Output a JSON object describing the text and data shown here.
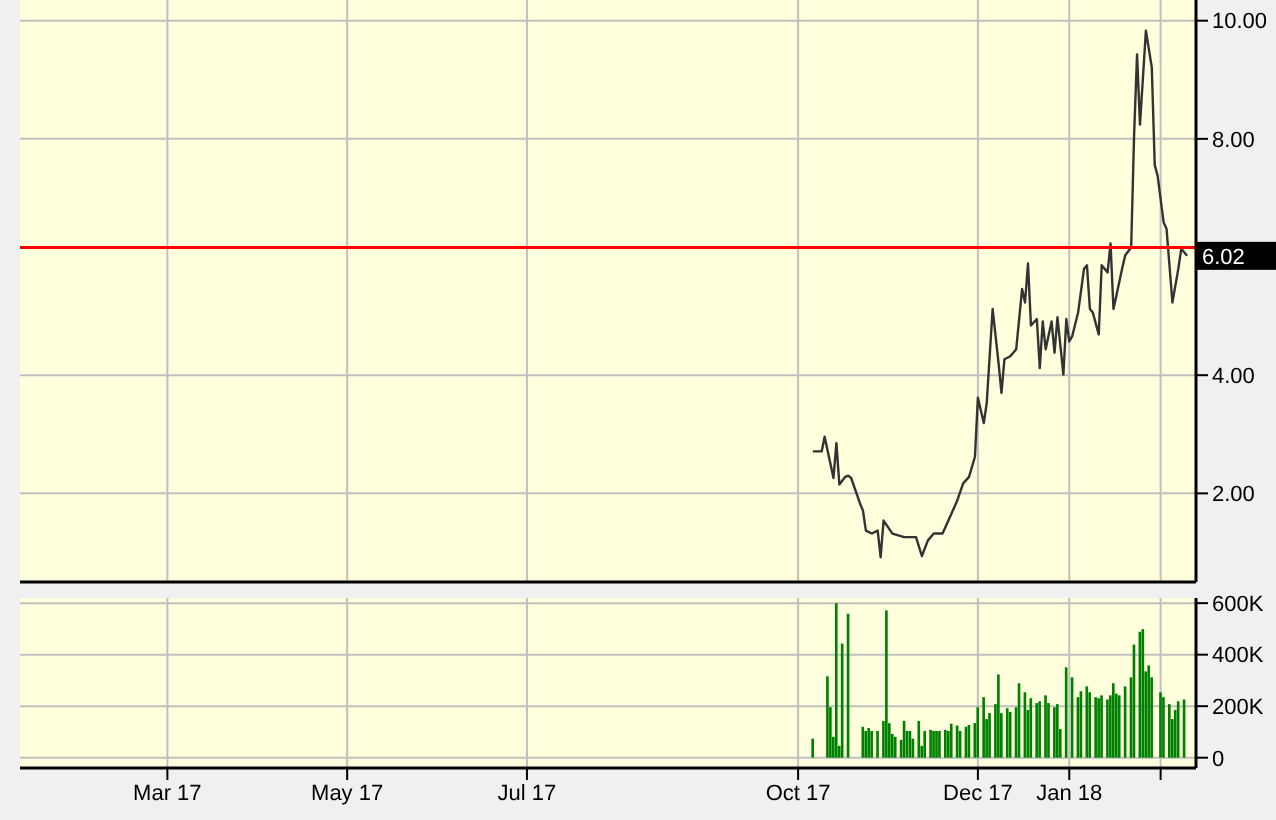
{
  "chart_data": [
    {
      "type": "line",
      "x": [
        "2017-10-06",
        "2017-10-09",
        "2017-10-10",
        "2017-10-13",
        "2017-10-14",
        "2017-10-15",
        "2017-10-17",
        "2017-10-18",
        "2017-10-19",
        "2017-10-22",
        "2017-10-23",
        "2017-10-24",
        "2017-10-26",
        "2017-10-28",
        "2017-10-29",
        "2017-10-30",
        "2017-11-02",
        "2017-11-06",
        "2017-11-10",
        "2017-11-12",
        "2017-11-14",
        "2017-11-16",
        "2017-11-19",
        "2017-11-21",
        "2017-11-24",
        "2017-11-26",
        "2017-11-28",
        "2017-11-30",
        "2017-12-01",
        "2017-12-03",
        "2017-12-04",
        "2017-12-06",
        "2017-12-08",
        "2017-12-09",
        "2017-12-10",
        "2017-12-12",
        "2017-12-14",
        "2017-12-16",
        "2017-12-17",
        "2017-12-18",
        "2017-12-19",
        "2017-12-21",
        "2017-12-22",
        "2017-12-23",
        "2017-12-24",
        "2017-12-26",
        "2017-12-27",
        "2017-12-28",
        "2017-12-30",
        "2017-12-31",
        "2018-01-01",
        "2018-01-02",
        "2018-01-04",
        "2018-01-06",
        "2018-01-07",
        "2018-01-08",
        "2018-01-09",
        "2018-01-11",
        "2018-01-12",
        "2018-01-14",
        "2018-01-15",
        "2018-01-16",
        "2018-01-17",
        "2018-01-19",
        "2018-01-20",
        "2018-01-22",
        "2018-01-23",
        "2018-01-24",
        "2018-01-25",
        "2018-01-27",
        "2018-01-29",
        "2018-01-30",
        "2018-01-31",
        "2018-02-02",
        "2018-02-03",
        "2018-02-05",
        "2018-02-07",
        "2018-02-08",
        "2018-02-10"
      ],
      "series": [
        {
          "color": "#333333",
          "values": [
            2.71,
            2.71,
            2.96,
            2.26,
            2.85,
            2.15,
            2.28,
            2.3,
            2.26,
            1.83,
            1.71,
            1.37,
            1.32,
            1.37,
            0.92,
            1.54,
            1.32,
            1.26,
            1.26,
            0.94,
            1.2,
            1.32,
            1.32,
            1.54,
            1.88,
            2.17,
            2.28,
            2.62,
            3.62,
            3.19,
            3.53,
            5.12,
            4.21,
            3.7,
            4.27,
            4.32,
            4.44,
            5.46,
            5.23,
            5.89,
            4.84,
            4.95,
            4.12,
            4.91,
            4.44,
            4.91,
            4.38,
            4.98,
            4.01,
            4.95,
            4.57,
            4.66,
            5.06,
            5.8,
            5.86,
            5.12,
            5.06,
            4.69,
            5.86,
            5.74,
            6.23,
            5.12,
            5.35,
            5.82,
            6.03,
            6.16,
            8.07,
            9.43,
            8.24,
            9.83,
            9.21,
            7.56,
            7.37,
            6.59,
            6.48,
            5.23,
            5.8,
            6.14,
            6.02
          ]
        }
      ],
      "xlim": [
        "2017-01-10",
        "2018-02-13"
      ],
      "xticks": [
        {
          "value": "2017-03-01",
          "label": null
        },
        {
          "value": "2017-05-01",
          "label": null
        },
        {
          "value": "2017-07-01",
          "label": null
        },
        {
          "value": "2017-10-01",
          "label": null
        },
        {
          "value": "2017-12-01",
          "label": null
        },
        {
          "value": "2018-01-01",
          "label": null
        },
        {
          "value": "2018-02-01",
          "label": null
        }
      ],
      "ylim": [
        0.5,
        10.35
      ],
      "yticks": [
        {
          "value": 2,
          "label": "2.00"
        },
        {
          "value": 4,
          "label": "4.00"
        },
        {
          "value": 8,
          "label": "8.00"
        },
        {
          "value": 10,
          "label": "10.00"
        }
      ],
      "ref_lines": [
        {
          "axis": "y",
          "value": 6.16,
          "color": "#ff0000"
        }
      ],
      "annotations": [
        {
          "text": "6.02",
          "x": "2018-02-10",
          "y": 6.02
        }
      ],
      "grid": true,
      "tick_labels": "y"
    },
    {
      "type": "bar",
      "color": "#008000",
      "x": [
        "2017-10-06",
        "2017-10-11",
        "2017-10-12",
        "2017-10-13",
        "2017-10-14",
        "2017-10-15",
        "2017-10-16",
        "2017-10-18",
        "2017-10-23",
        "2017-10-24",
        "2017-10-25",
        "2017-10-26",
        "2017-10-28",
        "2017-10-30",
        "2017-10-31",
        "2017-11-01",
        "2017-11-02",
        "2017-11-03",
        "2017-11-05",
        "2017-11-06",
        "2017-11-07",
        "2017-11-08",
        "2017-11-09",
        "2017-11-11",
        "2017-11-12",
        "2017-11-13",
        "2017-11-15",
        "2017-11-16",
        "2017-11-17",
        "2017-11-18",
        "2017-11-20",
        "2017-11-21",
        "2017-11-22",
        "2017-11-24",
        "2017-11-25",
        "2017-11-27",
        "2017-11-28",
        "2017-11-30",
        "2017-12-01",
        "2017-12-03",
        "2017-12-04",
        "2017-12-05",
        "2017-12-07",
        "2017-12-08",
        "2017-12-09",
        "2017-12-11",
        "2017-12-12",
        "2017-12-14",
        "2017-12-15",
        "2017-12-17",
        "2017-12-18",
        "2017-12-19",
        "2017-12-21",
        "2017-12-22",
        "2017-12-24",
        "2017-12-25",
        "2017-12-27",
        "2017-12-28",
        "2017-12-29",
        "2017-12-31",
        "2018-01-02",
        "2018-01-04",
        "2018-01-05",
        "2018-01-07",
        "2018-01-08",
        "2018-01-10",
        "2018-01-11",
        "2018-01-12",
        "2018-01-14",
        "2018-01-15",
        "2018-01-16",
        "2018-01-17",
        "2018-01-18",
        "2018-01-20",
        "2018-01-22",
        "2018-01-23",
        "2018-01-25",
        "2018-01-26",
        "2018-01-27",
        "2018-01-28",
        "2018-01-29",
        "2018-02-01",
        "2018-02-02",
        "2018-02-04",
        "2018-02-05",
        "2018-02-06",
        "2018-02-07",
        "2018-02-09"
      ],
      "values": [
        74000,
        316000,
        196000,
        81000,
        600000,
        46000,
        443000,
        559000,
        120000,
        104000,
        115000,
        104000,
        104000,
        143000,
        572000,
        134000,
        92000,
        81000,
        69000,
        143000,
        104000,
        104000,
        74000,
        143000,
        46000,
        104000,
        108000,
        104000,
        104000,
        104000,
        108000,
        104000,
        132000,
        125000,
        104000,
        120000,
        127000,
        134000,
        196000,
        235000,
        150000,
        173000,
        208000,
        323000,
        173000,
        192000,
        178000,
        196000,
        289000,
        254000,
        185000,
        231000,
        212000,
        219000,
        242000,
        212000,
        196000,
        208000,
        111000,
        351000,
        312000,
        235000,
        258000,
        277000,
        254000,
        235000,
        231000,
        242000,
        226000,
        242000,
        289000,
        249000,
        242000,
        277000,
        312000,
        439000,
        489000,
        499000,
        335000,
        358000,
        312000,
        254000,
        235000,
        208000,
        150000,
        185000,
        219000,
        226000
      ],
      "xlim": [
        "2017-01-10",
        "2018-02-13"
      ],
      "xticks": [
        {
          "value": "2017-03-01",
          "label": "Mar 17"
        },
        {
          "value": "2017-05-01",
          "label": "May 17"
        },
        {
          "value": "2017-07-01",
          "label": "Jul 17"
        },
        {
          "value": "2017-10-01",
          "label": "Oct 17"
        },
        {
          "value": "2017-12-01",
          "label": "Dec 17"
        },
        {
          "value": "2018-01-01",
          "label": "Jan 18"
        },
        {
          "value": "2018-02-01",
          "label": null
        }
      ],
      "ylim": [
        -40000,
        620000
      ],
      "yticks": [
        0,
        {
          "value": 200000,
          "label": "200K"
        },
        {
          "value": 400000,
          "label": "400K"
        },
        {
          "value": 600000,
          "label": "600K"
        }
      ],
      "grid": true
    }
  ]
}
